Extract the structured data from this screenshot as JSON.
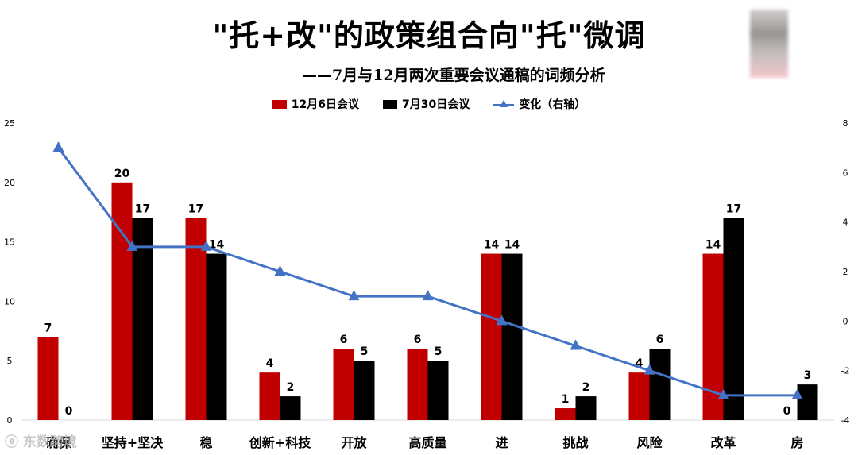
{
  "title": "\"托+改\"的政策组合向\"托\"微调",
  "subtitle": "——7月与12月两次重要会议通稿的词频分析",
  "watermark": "ⓔ 东数跨境",
  "colors": {
    "dec": "#c00000",
    "jul": "#000000",
    "change": "#4472c4"
  },
  "chart_data": {
    "type": "bar",
    "categories": [
      "确保",
      "坚持+坚决",
      "稳",
      "创新+科技",
      "开放",
      "高质量",
      "进",
      "挑战",
      "风险",
      "改革",
      "房"
    ],
    "series": [
      {
        "name": "12月6日会议",
        "type": "bar",
        "axis": "left",
        "values": [
          7,
          20,
          17,
          4,
          6,
          6,
          14,
          1,
          4,
          14,
          0
        ]
      },
      {
        "name": "7月30日会议",
        "type": "bar",
        "axis": "left",
        "values": [
          0,
          17,
          14,
          2,
          5,
          5,
          14,
          2,
          6,
          17,
          3
        ]
      },
      {
        "name": "变化（右轴）",
        "type": "line",
        "axis": "right",
        "values": [
          7,
          3,
          3,
          2,
          1,
          1,
          0,
          -1,
          -2,
          -3,
          -3
        ]
      }
    ],
    "ylim": [
      0,
      25
    ],
    "yticks": [
      0,
      5,
      10,
      15,
      20,
      25
    ],
    "y2lim": [
      -4,
      8
    ],
    "y2ticks": [
      -4,
      -2,
      0,
      2,
      4,
      6,
      8
    ],
    "legend": "top-center",
    "grid": false
  }
}
